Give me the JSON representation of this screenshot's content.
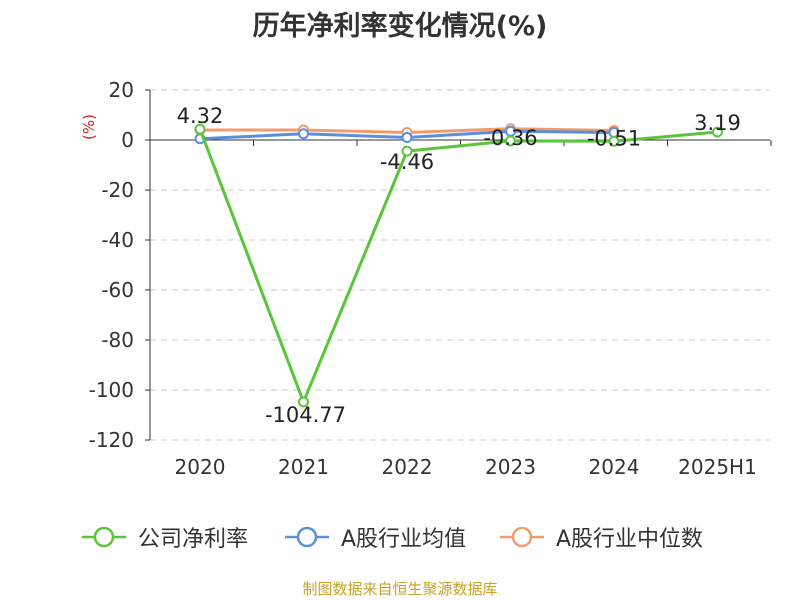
{
  "chart_data": {
    "type": "line",
    "title": "历年净利率变化情况(%)",
    "ylabel": "(%)",
    "categories": [
      "2020",
      "2021",
      "2022",
      "2023",
      "2024",
      "2025H1"
    ],
    "ylim": [
      -120,
      20
    ],
    "yticks": [
      20,
      0,
      -20,
      -40,
      -60,
      -80,
      -100,
      -120
    ],
    "grid": true,
    "legend_position": "bottom",
    "series": [
      {
        "name": "公司净利率",
        "color": "#5ac43a",
        "values": [
          4.32,
          -104.77,
          -4.46,
          -0.36,
          -0.51,
          3.19
        ],
        "labels": [
          "4.32",
          "-104.77",
          "-4.46",
          "-0.36",
          "-0.51",
          "3.19"
        ]
      },
      {
        "name": "A股行业均值",
        "color": "#5a8fde",
        "values": [
          0.5,
          2.5,
          1.0,
          3.5,
          3.0,
          null
        ]
      },
      {
        "name": "A股行业中位数",
        "color": "#f29b6b",
        "values": [
          4.0,
          4.0,
          3.0,
          4.5,
          3.8,
          null
        ]
      }
    ]
  },
  "source": "制图数据来自恒生聚源数据库"
}
